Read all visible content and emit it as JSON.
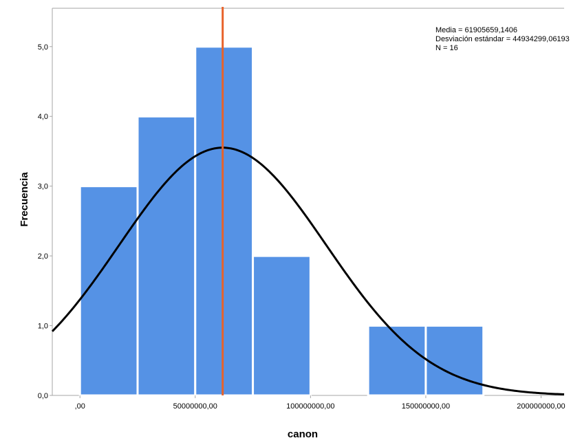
{
  "chart_data": {
    "type": "histogram",
    "xlabel": "canon",
    "ylabel": "Frecuencia",
    "x_ticks": [
      {
        "value": 0,
        "label": ",00"
      },
      {
        "value": 50000000,
        "label": "50000000,00"
      },
      {
        "value": 100000000,
        "label": "100000000,00"
      },
      {
        "value": 150000000,
        "label": "150000000,00"
      },
      {
        "value": 200000000,
        "label": "200000000,00"
      }
    ],
    "y_ticks": [
      {
        "value": 0,
        "label": "0,0"
      },
      {
        "value": 1,
        "label": "1,0"
      },
      {
        "value": 2,
        "label": "2,0"
      },
      {
        "value": 3,
        "label": "3,0"
      },
      {
        "value": 4,
        "label": "4,0"
      },
      {
        "value": 5,
        "label": "5,0"
      }
    ],
    "xlim": [
      -12000000,
      210000000
    ],
    "ylim": [
      0,
      5.55
    ],
    "bins": [
      {
        "start": 0,
        "end": 25000000,
        "count": 3
      },
      {
        "start": 25000000,
        "end": 50000000,
        "count": 4
      },
      {
        "start": 50000000,
        "end": 75000000,
        "count": 5
      },
      {
        "start": 75000000,
        "end": 100000000,
        "count": 2
      },
      {
        "start": 100000000,
        "end": 125000000,
        "count": 0
      },
      {
        "start": 125000000,
        "end": 150000000,
        "count": 1
      },
      {
        "start": 150000000,
        "end": 175000000,
        "count": 1
      }
    ],
    "normal_curve": {
      "mean": 61905659.1406,
      "std": 44934299.06193,
      "n": 16,
      "bin_width": 25000000
    },
    "mean_line": {
      "value": 61905659.1406
    },
    "stats": [
      "Media = 61905659,1406",
      "Desviación estándar = 44934299,06193",
      "N = 16"
    ],
    "colors": {
      "bar_fill": "#5592e5",
      "bar_stroke": "#ffffff",
      "curve": "#000000",
      "mean_line": "#e8622a",
      "frame": "#a6a6a6"
    },
    "grid": false
  }
}
